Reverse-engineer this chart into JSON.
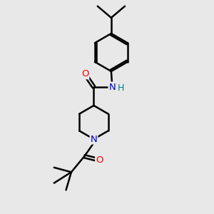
{
  "background_color": "#e8e8e8",
  "atom_colors": {
    "C": "#000000",
    "N": "#0000cc",
    "O": "#ff0000",
    "H": "#008080"
  },
  "bond_width": 1.8,
  "figsize": [
    3.0,
    3.0
  ],
  "dpi": 100,
  "xlim": [
    0,
    10
  ],
  "ylim": [
    0,
    10
  ]
}
